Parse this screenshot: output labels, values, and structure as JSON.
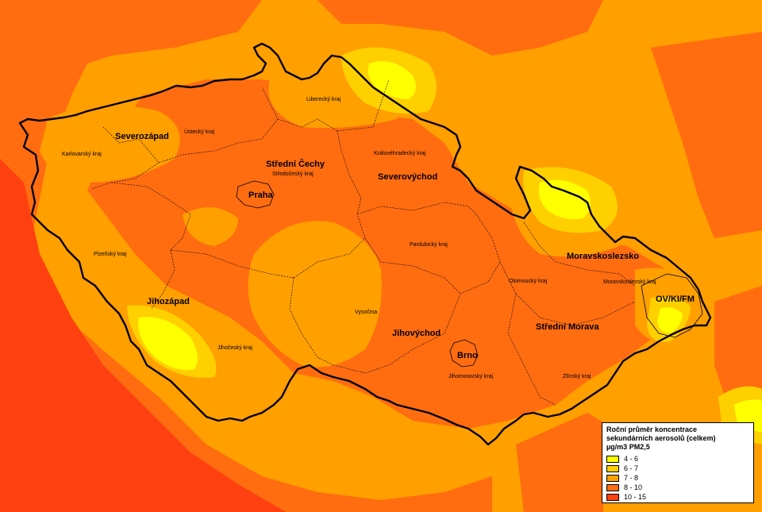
{
  "colors": {
    "c46": "#ffff00",
    "c67": "#ffd000",
    "c78": "#ff9f00",
    "c810": "#ff6d10",
    "c1015": "#ff4010",
    "border": "#000000"
  },
  "regions_major": [
    {
      "id": "severozapad",
      "label": "Severozápad"
    },
    {
      "id": "stredni-cechy",
      "label": "Střední Čechy"
    },
    {
      "id": "praha",
      "label": "Praha"
    },
    {
      "id": "severovychod",
      "label": "Severovýchod"
    },
    {
      "id": "moravskoslezsko",
      "label": "Moravskoslezsko"
    },
    {
      "id": "ov-ki-fm",
      "label": "OV/KI/FM"
    },
    {
      "id": "jihozapad",
      "label": "Jihozápad"
    },
    {
      "id": "jihovychod",
      "label": "Jihovýchod"
    },
    {
      "id": "stredni-morava",
      "label": "Střední Morava"
    },
    {
      "id": "brno",
      "label": "Brno"
    }
  ],
  "kraje": [
    {
      "id": "karlovarsky",
      "label": "Karlovarský kraj"
    },
    {
      "id": "ustecky",
      "label": "Ústecký kraj"
    },
    {
      "id": "liberecky",
      "label": "Liberecký kraj"
    },
    {
      "id": "stredocesky",
      "label": "Středočeský kraj"
    },
    {
      "id": "kralovehradecky",
      "label": "Královéhradecký kraj"
    },
    {
      "id": "plzensky",
      "label": "Plzeňský kraj"
    },
    {
      "id": "pardubicky",
      "label": "Pardubický kraj"
    },
    {
      "id": "olomoucky",
      "label": "Olomoucký kraj"
    },
    {
      "id": "moravskoslezsky",
      "label": "Moravskoslezský kraj"
    },
    {
      "id": "vysocina",
      "label": "Vysočina"
    },
    {
      "id": "jihocesky",
      "label": "Jihočeský kraj"
    },
    {
      "id": "jihomoravsky",
      "label": "Jihomoravský kraj"
    },
    {
      "id": "zlinsky",
      "label": "Zlínský kraj"
    }
  ],
  "legend": {
    "title_line1": "Roční průměr koncentrace",
    "title_line2": "sekundárních aerosolů (celkem)",
    "title_line3": "µg/m3 PM2,5",
    "items": [
      {
        "label": "4 - 6",
        "color": "#ffff00"
      },
      {
        "label": "6 - 7",
        "color": "#ffd000"
      },
      {
        "label": "7 - 8",
        "color": "#ff9f00"
      },
      {
        "label": "8 - 10",
        "color": "#ff6d10"
      },
      {
        "label": "10 - 15",
        "color": "#ff4010"
      }
    ]
  }
}
